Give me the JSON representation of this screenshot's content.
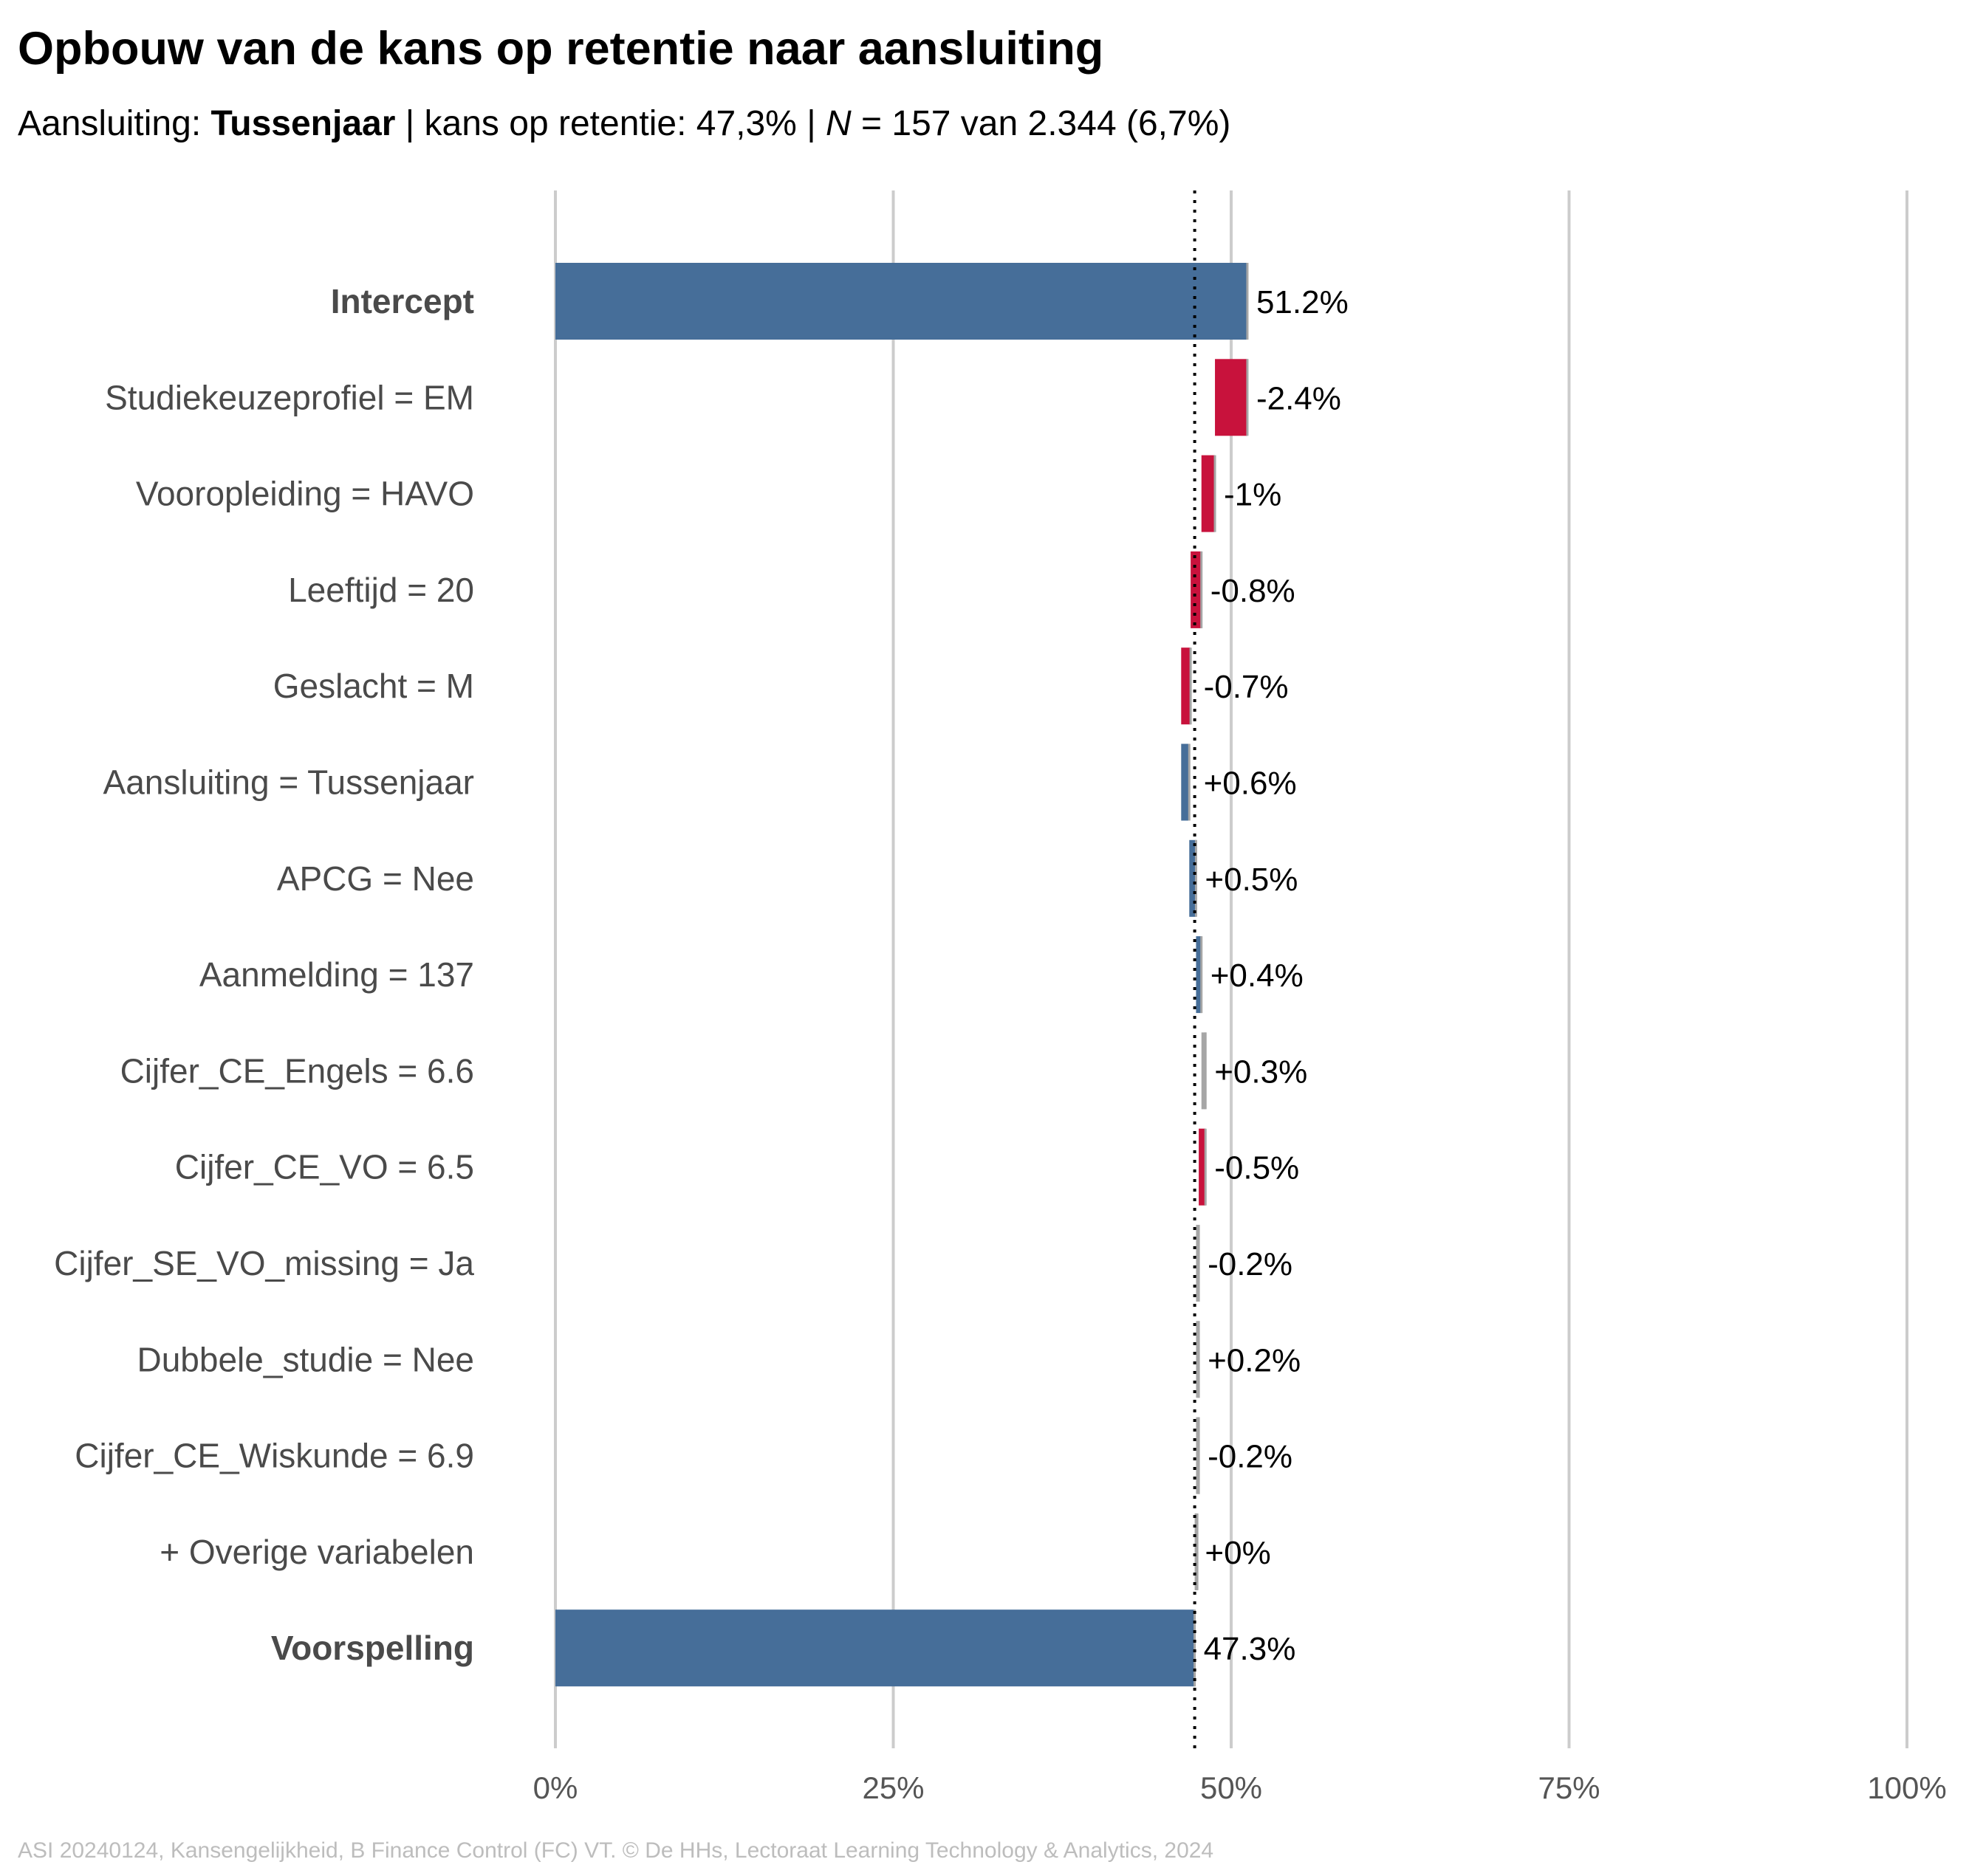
{
  "title": "Opbouw van de kans op retentie naar aansluiting",
  "subtitle": {
    "prefix": "Aansluiting: ",
    "group": "Tussenjaar",
    "middle": " | kans op retentie: 47,3% | ",
    "n_symbol": "N",
    "suffix": " = 157 van 2.344 (6,7%)"
  },
  "caption": "ASI 20240124, Kansengelijkheid, B Finance Control (FC) VT. © De HHs, Lectoraat Learning Technology & Analytics, 2024",
  "colors": {
    "total": "#466e99",
    "negative": "#c8123c",
    "positive": "#466e99",
    "small": "#a6a6a6",
    "grid": "#cccccc",
    "label": "#4a4a4a",
    "value": "#000000",
    "reference": "#000000"
  },
  "chart_data": {
    "type": "bar",
    "subtype": "waterfall",
    "orientation": "horizontal",
    "xlim": [
      0,
      100
    ],
    "x_ticks": [
      0,
      25,
      50,
      75,
      100
    ],
    "x_tick_labels": [
      "0%",
      "25%",
      "50%",
      "75%",
      "100%"
    ],
    "grid": true,
    "reference_line": 47.3,
    "items": [
      {
        "label": "Intercept",
        "kind": "total",
        "start": 0,
        "end": 51.2,
        "value_label": "51.2%"
      },
      {
        "label": "Studiekeuzeprofiel = EM",
        "kind": "negative",
        "start": 51.2,
        "end": 48.8,
        "value_label": "-2.4%"
      },
      {
        "label": "Vooropleiding = HAVO",
        "kind": "negative",
        "start": 48.8,
        "end": 47.8,
        "value_label": "-1%"
      },
      {
        "label": "Leeftijd = 20",
        "kind": "negative",
        "start": 47.8,
        "end": 47.0,
        "value_label": "-0.8%"
      },
      {
        "label": "Geslacht = M",
        "kind": "negative",
        "start": 47.0,
        "end": 46.3,
        "value_label": "-0.7%"
      },
      {
        "label": "Aansluiting = Tussenjaar",
        "kind": "positive",
        "start": 46.3,
        "end": 46.9,
        "value_label": "+0.6%"
      },
      {
        "label": "APCG = Nee",
        "kind": "positive",
        "start": 46.9,
        "end": 47.4,
        "value_label": "+0.5%"
      },
      {
        "label": "Aanmelding = 137",
        "kind": "positive",
        "start": 47.4,
        "end": 47.8,
        "value_label": "+0.4%"
      },
      {
        "label": "Cijfer_CE_Engels = 6.6",
        "kind": "small",
        "start": 47.8,
        "end": 48.1,
        "value_label": "+0.3%"
      },
      {
        "label": "Cijfer_CE_VO = 6.5",
        "kind": "negative",
        "start": 48.1,
        "end": 47.6,
        "value_label": "-0.5%"
      },
      {
        "label": "Cijfer_SE_VO_missing = Ja",
        "kind": "small",
        "start": 47.6,
        "end": 47.4,
        "value_label": "-0.2%"
      },
      {
        "label": "Dubbele_studie = Nee",
        "kind": "small",
        "start": 47.4,
        "end": 47.6,
        "value_label": "+0.2%"
      },
      {
        "label": "Cijfer_CE_Wiskunde = 6.9",
        "kind": "small",
        "start": 47.6,
        "end": 47.4,
        "value_label": "-0.2%"
      },
      {
        "label": "+ Overige variabelen",
        "kind": "small",
        "start": 47.4,
        "end": 47.3,
        "value_label": "+0%"
      },
      {
        "label": "Voorspelling",
        "kind": "total",
        "start": 0,
        "end": 47.3,
        "value_label": "47.3%"
      }
    ]
  }
}
